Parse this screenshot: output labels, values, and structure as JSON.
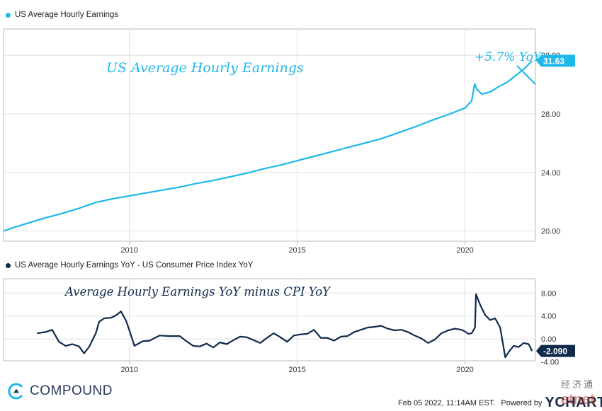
{
  "colors": {
    "earnings": "#1fb8ea",
    "spread": "#102a4c",
    "annotation_top": "#1fb8ea",
    "annotation_bottom": "#102a4c",
    "grid": "#e1e1e1",
    "frame": "#b9b9b9",
    "brand": "#2b3a5c"
  },
  "chart_data": [
    {
      "type": "line",
      "legend": "US Average Hourly Earnings",
      "annotation": "US Average Hourly Earnings",
      "callout": "+5.7% YoY",
      "last_value_label": "31.63",
      "ylim": [
        19.3,
        33.8
      ],
      "yticks": [
        20,
        24,
        28,
        32
      ],
      "ytick_labels": [
        "20.00",
        "24.00",
        "28.00",
        "32.00"
      ],
      "xlim": [
        2006.25,
        2022.1
      ],
      "xticks": [
        2010,
        2015,
        2020
      ],
      "xtick_labels": [
        "2010",
        "2015",
        "2020"
      ],
      "grid": true,
      "series": [
        {
          "x": [
            2006.25,
            2006.5,
            2007.0,
            2007.5,
            2008.0,
            2008.5,
            2009.0,
            2009.5,
            2010.0,
            2010.5,
            2011.0,
            2011.5,
            2012.0,
            2012.5,
            2013.0,
            2013.5,
            2014.0,
            2014.5,
            2015.0,
            2015.5,
            2016.0,
            2016.5,
            2017.0,
            2017.5,
            2018.0,
            2018.5,
            2019.0,
            2019.5,
            2020.0,
            2020.2,
            2020.29,
            2020.35,
            2020.5,
            2020.75,
            2021.0,
            2021.25,
            2021.5,
            2021.75,
            2022.0
          ],
          "y": [
            20.0,
            20.2,
            20.55,
            20.9,
            21.2,
            21.55,
            21.95,
            22.2,
            22.4,
            22.6,
            22.8,
            23.0,
            23.25,
            23.45,
            23.7,
            23.95,
            24.25,
            24.5,
            24.8,
            25.1,
            25.4,
            25.7,
            26.0,
            26.3,
            26.7,
            27.1,
            27.55,
            27.95,
            28.4,
            28.9,
            30.05,
            29.7,
            29.35,
            29.5,
            29.85,
            30.15,
            30.6,
            31.05,
            31.63
          ]
        }
      ]
    },
    {
      "type": "line",
      "legend": "US Average Hourly Earnings YoY - US Consumer Price Index YoY",
      "annotation": "Average Hourly Earnings YoY minus CPI YoY",
      "last_value_label": "-2.090",
      "ylim": [
        -3.8,
        10.5
      ],
      "yticks": [
        -4,
        0,
        4,
        8
      ],
      "ytick_labels": [
        "-4.00",
        "0.00",
        "4.00",
        "8.00"
      ],
      "xlim": [
        2006.25,
        2022.1
      ],
      "xticks": [
        2010,
        2015,
        2020
      ],
      "xtick_labels": [
        "2010",
        "2015",
        "2020"
      ],
      "grid": true,
      "series": [
        {
          "x": [
            2007.25,
            2007.5,
            2007.7,
            2007.9,
            2008.1,
            2008.3,
            2008.5,
            2008.65,
            2008.8,
            2009.0,
            2009.1,
            2009.25,
            2009.45,
            2009.6,
            2009.75,
            2009.9,
            2010.0,
            2010.15,
            2010.4,
            2010.6,
            2010.9,
            2011.2,
            2011.5,
            2011.7,
            2011.9,
            2012.1,
            2012.3,
            2012.5,
            2012.7,
            2012.9,
            2013.1,
            2013.3,
            2013.5,
            2013.7,
            2013.9,
            2014.1,
            2014.3,
            2014.5,
            2014.7,
            2014.9,
            2015.1,
            2015.3,
            2015.5,
            2015.7,
            2015.9,
            2016.1,
            2016.3,
            2016.5,
            2016.7,
            2016.9,
            2017.1,
            2017.3,
            2017.5,
            2017.7,
            2017.9,
            2018.1,
            2018.3,
            2018.5,
            2018.7,
            2018.9,
            2019.1,
            2019.3,
            2019.5,
            2019.7,
            2019.9,
            2020.0,
            2020.1,
            2020.2,
            2020.3,
            2020.33,
            2020.45,
            2020.6,
            2020.75,
            2020.9,
            2021.05,
            2021.2,
            2021.3,
            2021.45,
            2021.6,
            2021.75,
            2021.9,
            2022.0
          ],
          "y": [
            1.0,
            1.2,
            1.6,
            -0.5,
            -1.2,
            -0.9,
            -1.3,
            -2.5,
            -1.4,
            1.0,
            3.0,
            3.6,
            3.7,
            4.1,
            4.8,
            3.2,
            1.5,
            -1.2,
            -0.4,
            -0.3,
            0.6,
            0.5,
            0.5,
            -0.4,
            -1.2,
            -1.3,
            -0.8,
            -1.5,
            -0.6,
            -0.9,
            -0.2,
            0.4,
            0.3,
            -0.2,
            -0.7,
            0.2,
            1.0,
            0.3,
            -0.5,
            0.6,
            0.8,
            0.9,
            1.6,
            0.2,
            0.2,
            -0.3,
            0.4,
            0.5,
            1.2,
            1.6,
            2.0,
            2.1,
            2.3,
            1.8,
            1.5,
            1.6,
            1.2,
            0.6,
            0.1,
            -0.7,
            -0.1,
            1.0,
            1.5,
            1.8,
            1.6,
            1.3,
            0.9,
            1.0,
            2.0,
            7.8,
            6.0,
            4.2,
            3.3,
            3.6,
            2.0,
            -3.2,
            -2.3,
            -1.2,
            -1.4,
            -0.7,
            -0.9,
            -2.09
          ]
        }
      ]
    }
  ],
  "footer": {
    "brand": "COMPOUND",
    "timestamp": "Feb 05 2022, 11:14AM EST.",
    "powered_by": "Powered by",
    "provider": "YCHARTS",
    "watermark_cn": "经济通",
    "watermark_logo": "etnet"
  }
}
